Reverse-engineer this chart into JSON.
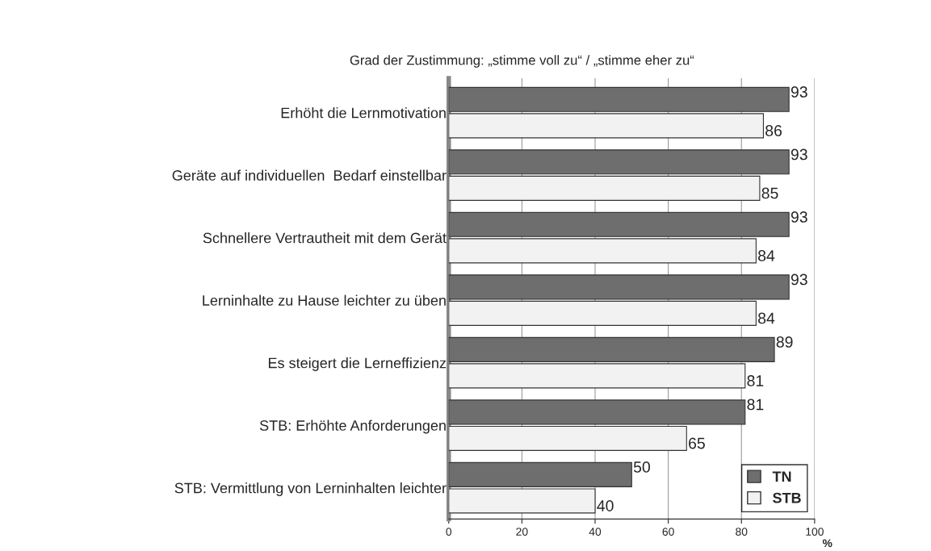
{
  "chart_data": {
    "type": "bar",
    "orientation": "horizontal",
    "title": "Grad der Zustimmung: „stimme voll zu“ / „stimme eher zu“",
    "xlabel": "%",
    "categories": [
      "Erhöht die Lernmotivation",
      "Geräte auf individuellen  Bedarf einstellbar",
      "Schnellere Vertrautheit mit dem Gerät",
      "Lerninhalte zu Hause leichter zu üben",
      "Es steigert die Lerneffizienz",
      "STB: Erhöhte Anforderungen",
      "STB: Vermittlung von Lerninhalten leichter"
    ],
    "series": [
      {
        "name": "TN",
        "color": "#6e6e6e",
        "values": [
          93,
          93,
          93,
          93,
          89,
          81,
          50
        ]
      },
      {
        "name": "STB",
        "color": "#f2f2f2",
        "values": [
          86,
          85,
          84,
          84,
          81,
          65,
          40
        ]
      }
    ],
    "xlim": [
      0,
      100
    ],
    "xticks": [
      0,
      20,
      40,
      60,
      80,
      100
    ],
    "grid": "x",
    "legend": "bottom right",
    "data_labels": true
  }
}
